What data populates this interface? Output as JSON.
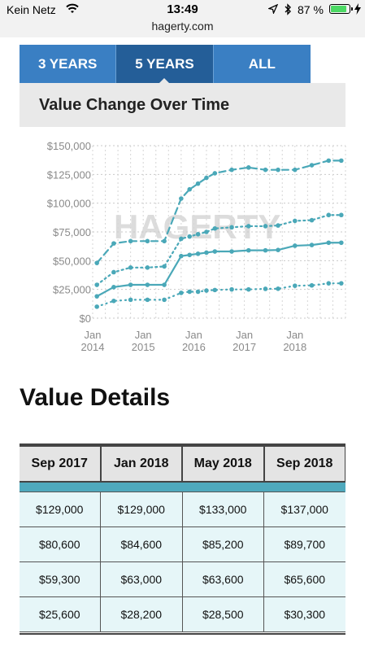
{
  "status_bar": {
    "carrier": "Kein Netz",
    "time": "13:49",
    "url": "hagerty.com",
    "battery_percent": "87 %",
    "battery_level": 0.87,
    "battery_color": "#4cd964"
  },
  "tabs": [
    {
      "label": "3 YEARS",
      "active": false
    },
    {
      "label": "5 YEARS",
      "active": true
    },
    {
      "label": "ALL",
      "active": false
    }
  ],
  "chart_panel_title": "Value Change Over Time",
  "chart_data": {
    "type": "line",
    "watermark": "HAGERTY",
    "y_ticks": [
      "$150,000",
      "$125,000",
      "$100,000",
      "$75,000",
      "$50,000",
      "$25,000",
      "$0"
    ],
    "x_ticks": [
      {
        "month": "Jan",
        "year": "2014"
      },
      {
        "month": "Jan",
        "year": "2015"
      },
      {
        "month": "Jan",
        "year": "2016"
      },
      {
        "month": "Jan",
        "year": "2017"
      },
      {
        "month": "Jan",
        "year": "2018"
      }
    ],
    "ylim": [
      0,
      150000
    ],
    "xlim": [
      "2014-01",
      "2018-12"
    ],
    "grid": true,
    "color": "#4aa8b8",
    "series": [
      {
        "style": "dashed",
        "x": [
          "2014-02",
          "2014-06",
          "2014-10",
          "2015-02",
          "2015-06",
          "2015-10",
          "2015-12",
          "2016-02",
          "2016-04",
          "2016-06",
          "2016-10",
          "2017-02",
          "2017-06",
          "2017-09",
          "2018-01",
          "2018-05",
          "2018-09",
          "2018-12"
        ],
        "values": [
          48000,
          65000,
          67000,
          67000,
          67000,
          104000,
          112000,
          117000,
          122000,
          126000,
          129000,
          131000,
          129000,
          129000,
          129000,
          133000,
          137000,
          137000
        ]
      },
      {
        "style": "dotted",
        "x": [
          "2014-02",
          "2014-06",
          "2014-10",
          "2015-02",
          "2015-06",
          "2015-10",
          "2015-12",
          "2016-02",
          "2016-04",
          "2016-06",
          "2016-10",
          "2017-02",
          "2017-06",
          "2017-09",
          "2018-01",
          "2018-05",
          "2018-09",
          "2018-12"
        ],
        "values": [
          29000,
          40000,
          44000,
          44000,
          45000,
          69000,
          71000,
          73000,
          75000,
          78000,
          79000,
          80000,
          80000,
          80600,
          84600,
          85200,
          89700,
          89700
        ]
      },
      {
        "style": "solid",
        "x": [
          "2014-02",
          "2014-06",
          "2014-10",
          "2015-02",
          "2015-06",
          "2015-10",
          "2015-12",
          "2016-02",
          "2016-04",
          "2016-06",
          "2016-10",
          "2017-02",
          "2017-06",
          "2017-09",
          "2018-01",
          "2018-05",
          "2018-09",
          "2018-12"
        ],
        "values": [
          19000,
          27000,
          29000,
          29000,
          29000,
          54000,
          55000,
          56000,
          57000,
          58000,
          58000,
          59000,
          59000,
          59300,
          63000,
          63600,
          65600,
          65600
        ]
      },
      {
        "style": "dotted-sparse",
        "x": [
          "2014-02",
          "2014-06",
          "2014-10",
          "2015-02",
          "2015-06",
          "2015-10",
          "2015-12",
          "2016-02",
          "2016-04",
          "2016-06",
          "2016-10",
          "2017-02",
          "2017-06",
          "2017-09",
          "2018-01",
          "2018-05",
          "2018-09",
          "2018-12"
        ],
        "values": [
          10000,
          15000,
          16000,
          16000,
          16000,
          22000,
          23000,
          23000,
          24000,
          24500,
          25000,
          25000,
          25500,
          25600,
          28200,
          28500,
          30300,
          30300
        ]
      }
    ]
  },
  "section_title": "Value Details",
  "table": {
    "headers": [
      "Sep 2017",
      "Jan 2018",
      "May 2018",
      "Sep 2018"
    ],
    "rows": [
      [
        "$129,000",
        "$129,000",
        "$133,000",
        "$137,000"
      ],
      [
        "$80,600",
        "$84,600",
        "$85,200",
        "$89,700"
      ],
      [
        "$59,300",
        "$63,000",
        "$63,600",
        "$65,600"
      ],
      [
        "$25,600",
        "$28,200",
        "$28,500",
        "$30,300"
      ]
    ]
  }
}
